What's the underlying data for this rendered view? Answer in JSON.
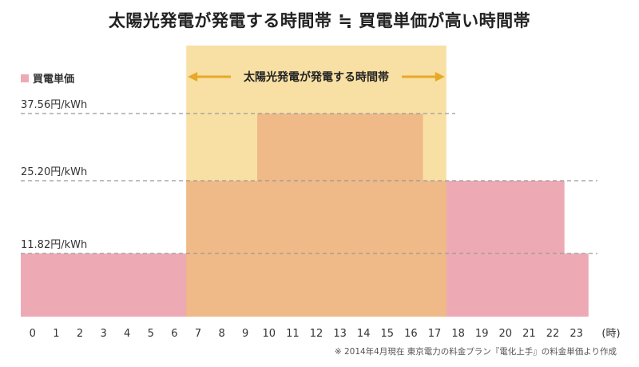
{
  "page_title": "太陽光発電が発電する時間帯 ≒ 買電単価が高い時間帯",
  "chart_data": {
    "type": "bar",
    "title": "太陽光発電が発電する時間帯 ≒ 買電単価が高い時間帯",
    "legend": [
      {
        "name": "買電単価",
        "color": "#eeaab4",
        "position": "top-left"
      }
    ],
    "unit_label": "(時)",
    "categories": [
      "0",
      "1",
      "2",
      "3",
      "4",
      "5",
      "6",
      "7",
      "8",
      "9",
      "10",
      "11",
      "12",
      "13",
      "14",
      "15",
      "16",
      "17",
      "18",
      "19",
      "20",
      "21",
      "22",
      "23"
    ],
    "series": [
      {
        "name": "買電単価",
        "unit": "円/kWh",
        "values": [
          11.82,
          11.82,
          11.82,
          11.82,
          11.82,
          11.82,
          11.82,
          25.2,
          25.2,
          25.2,
          37.56,
          37.56,
          37.56,
          37.56,
          37.56,
          37.56,
          37.56,
          25.2,
          25.2,
          25.2,
          25.2,
          25.2,
          25.2,
          11.82
        ]
      }
    ],
    "reference_lines": [
      {
        "value": 37.56,
        "label": "37.56円/kWh"
      },
      {
        "value": 25.2,
        "label": "25.20円/kWh"
      },
      {
        "value": 11.82,
        "label": "11.82円/kWh"
      }
    ],
    "ylim": [
      0,
      46
    ],
    "highlight": {
      "from_hour": 7,
      "to_hour": 18,
      "label": "太陽光発電が発電する時間帯"
    },
    "annotation": "※ 2014年4月現在 東京電力の料金プラン『電化上手』の料金単価より作成",
    "grid": false,
    "colors": {
      "price_bar": "#eeaab4",
      "solar_band": "#f8e0a4",
      "overlap_bar": "#efba88",
      "arrow": "#e8a828",
      "dashed_line": "#999999"
    }
  }
}
